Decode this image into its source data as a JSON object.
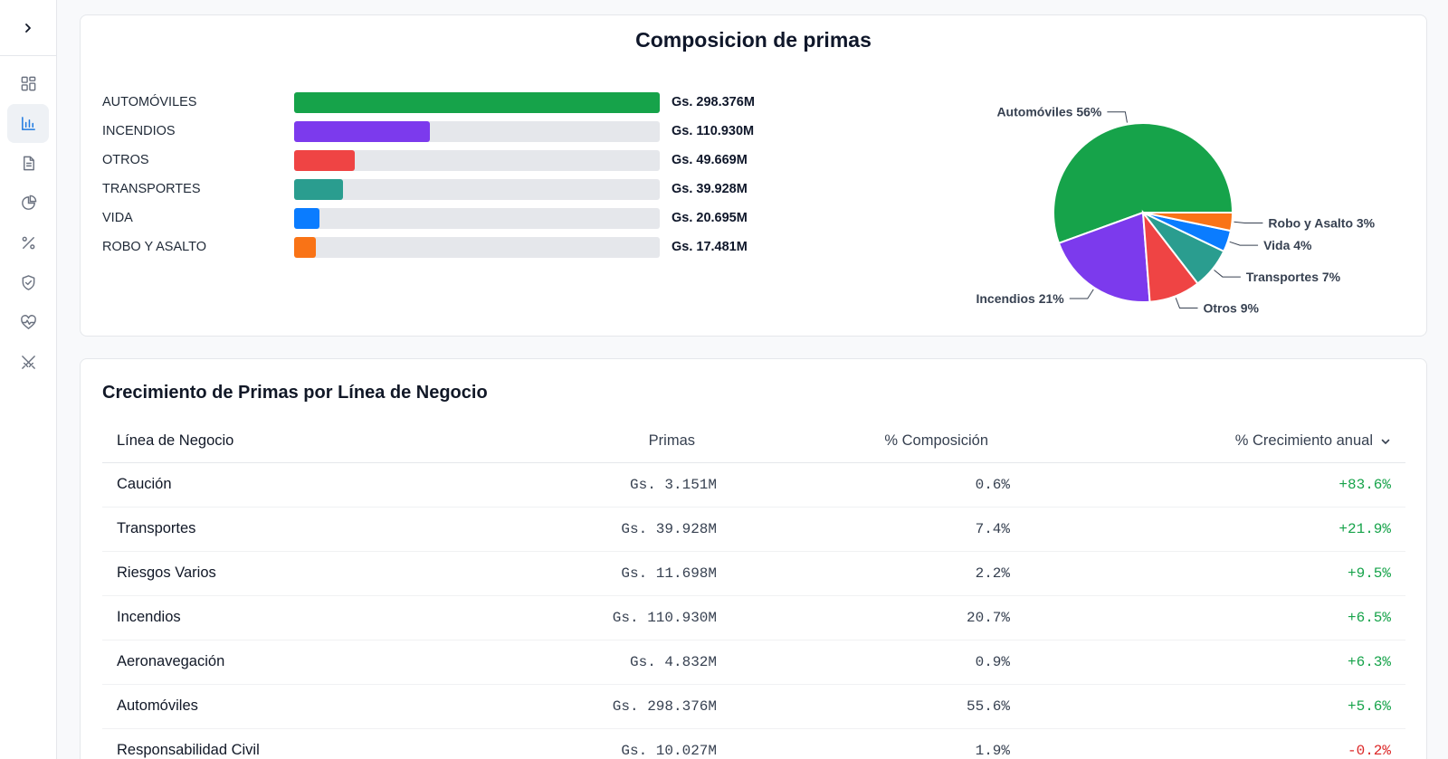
{
  "sidebar": {
    "items": [
      {
        "icon": "dashboard-icon",
        "active": false
      },
      {
        "icon": "bar-chart-icon",
        "active": true
      },
      {
        "icon": "document-icon",
        "active": false
      },
      {
        "icon": "pie-chart-icon",
        "active": false
      },
      {
        "icon": "percent-icon",
        "active": false
      },
      {
        "icon": "shield-check-icon",
        "active": false
      },
      {
        "icon": "heart-pulse-icon",
        "active": false
      },
      {
        "icon": "swords-icon",
        "active": false
      }
    ]
  },
  "composition": {
    "title": "Composicion de primas",
    "bars": [
      {
        "label": "AUTOMÓVILES",
        "value": "Gs. 298.376M",
        "amount": 298.376,
        "color": "#16a34a"
      },
      {
        "label": "INCENDIOS",
        "value": "Gs. 110.930M",
        "amount": 110.93,
        "color": "#7c3aed"
      },
      {
        "label": "OTROS",
        "value": "Gs. 49.669M",
        "amount": 49.669,
        "color": "#ef4444"
      },
      {
        "label": "TRANSPORTES",
        "value": "Gs. 39.928M",
        "amount": 39.928,
        "color": "#2a9d8f"
      },
      {
        "label": "VIDA",
        "value": "Gs. 20.695M",
        "amount": 20.695,
        "color": "#0a7cff"
      },
      {
        "label": "ROBO Y ASALTO",
        "value": "Gs. 17.481M",
        "amount": 17.481,
        "color": "#f97316"
      }
    ]
  },
  "chart_data": {
    "type": "pie",
    "title": "Composicion de primas",
    "slices": [
      {
        "label": "Automóviles 56%",
        "value": 298.376,
        "color": "#16a34a"
      },
      {
        "label": "Incendios 21%",
        "value": 110.93,
        "color": "#7c3aed"
      },
      {
        "label": "Otros 9%",
        "value": 49.669,
        "color": "#ef4444"
      },
      {
        "label": "Transportes 7%",
        "value": 39.928,
        "color": "#2a9d8f"
      },
      {
        "label": "Vida 4%",
        "value": 20.695,
        "color": "#0a7cff"
      },
      {
        "label": "Robo y Asalto 3%",
        "value": 17.481,
        "color": "#f97316"
      }
    ]
  },
  "growth": {
    "title": "Crecimiento de Primas por Línea de Negocio",
    "headers": {
      "line": "Línea de Negocio",
      "primas": "Primas",
      "comp": "% Composición",
      "growth": "% Crecimiento anual"
    },
    "rows": [
      {
        "line": "Caución",
        "primas": "Gs. 3.151M",
        "comp": "0.6%",
        "growth": "+83.6%",
        "positive": true
      },
      {
        "line": "Transportes",
        "primas": "Gs. 39.928M",
        "comp": "7.4%",
        "growth": "+21.9%",
        "positive": true
      },
      {
        "line": "Riesgos Varios",
        "primas": "Gs. 11.698M",
        "comp": "2.2%",
        "growth": "+9.5%",
        "positive": true
      },
      {
        "line": "Incendios",
        "primas": "Gs. 110.930M",
        "comp": "20.7%",
        "growth": "+6.5%",
        "positive": true
      },
      {
        "line": "Aeronavegación",
        "primas": "Gs. 4.832M",
        "comp": "0.9%",
        "growth": "+6.3%",
        "positive": true
      },
      {
        "line": "Automóviles",
        "primas": "Gs. 298.376M",
        "comp": "55.6%",
        "growth": "+5.6%",
        "positive": true
      },
      {
        "line": "Responsabilidad Civil",
        "primas": "Gs. 10.027M",
        "comp": "1.9%",
        "growth": "-0.2%",
        "positive": false
      }
    ]
  }
}
